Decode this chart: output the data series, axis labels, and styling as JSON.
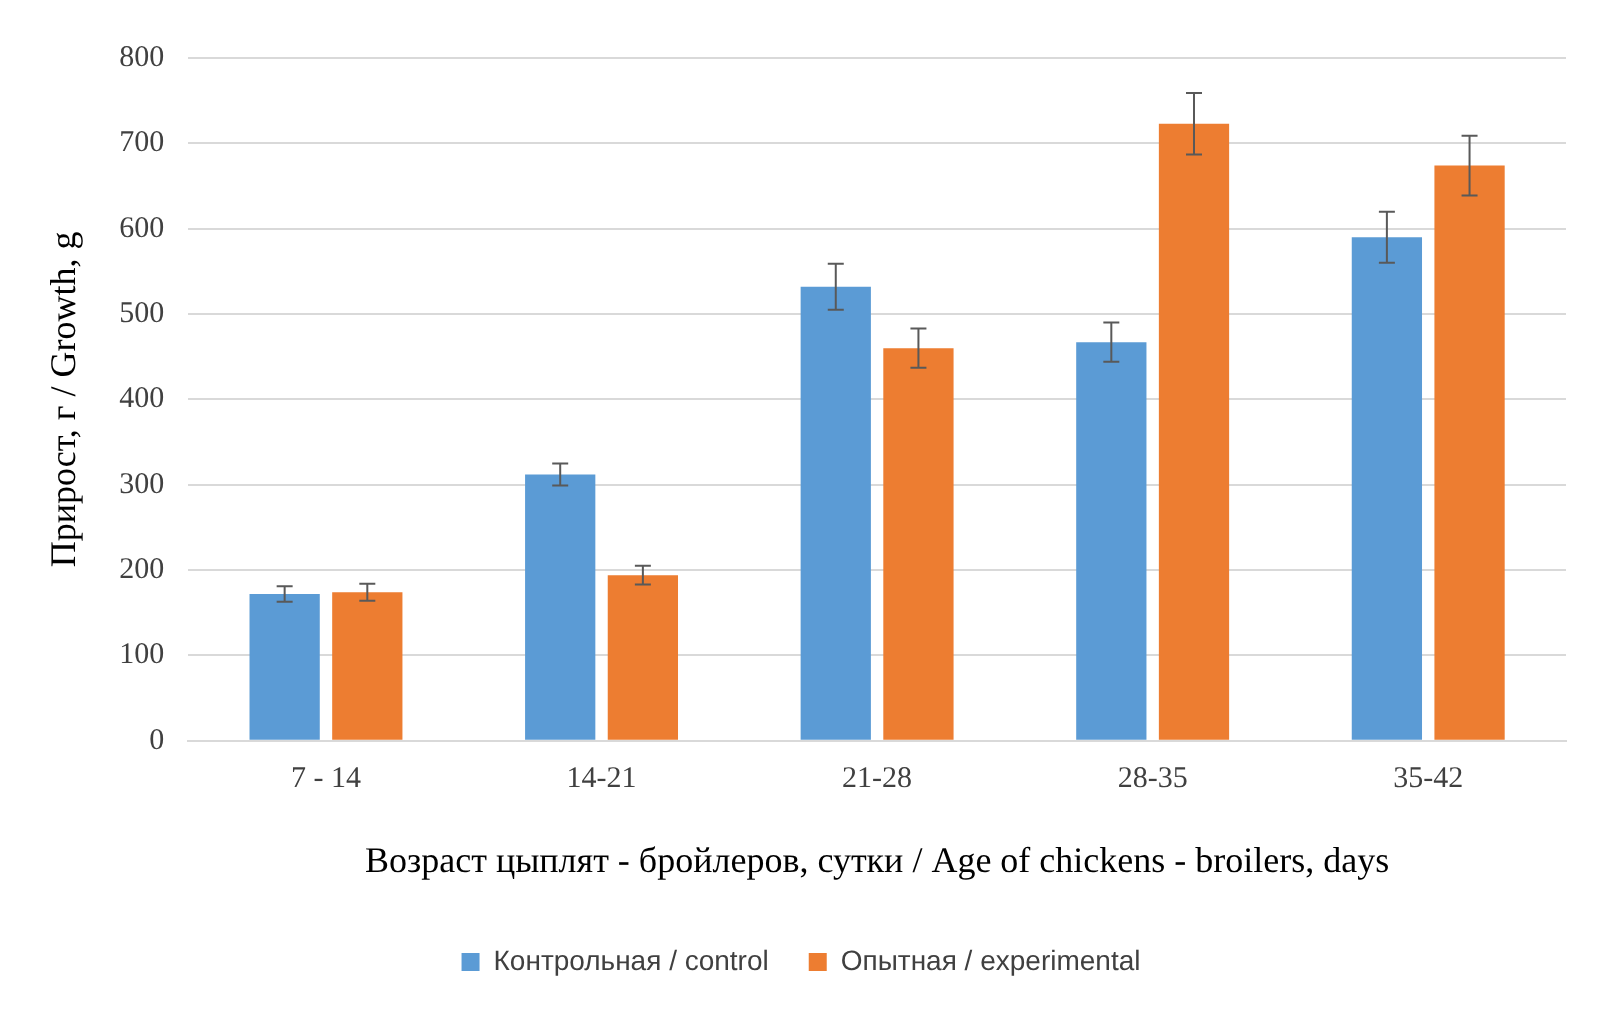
{
  "chart_data": {
    "type": "bar",
    "ylabel": "Прирост, г / Growth, g",
    "xlabel": "Возраст цыплят - бройлеров, сутки / Age of chickens - broilers, days",
    "categories": [
      "7 - 14",
      "14-21",
      "21-28",
      "28-35",
      "35-42"
    ],
    "series": [
      {
        "name": "Контрольная / control",
        "color": "#5b9bd5",
        "values": [
          172,
          312,
          532,
          467,
          590
        ],
        "errors": [
          9,
          13,
          27,
          23,
          30
        ]
      },
      {
        "name": "Опытная / experimental",
        "color": "#ed7d31",
        "values": [
          174,
          194,
          460,
          723,
          674
        ],
        "errors": [
          10,
          11,
          23,
          36,
          35
        ]
      }
    ],
    "ylim": [
      0,
      800
    ],
    "yticks": [
      0,
      100,
      200,
      300,
      400,
      500,
      600,
      700,
      800
    ],
    "grid": "y",
    "legend": "bottom"
  }
}
